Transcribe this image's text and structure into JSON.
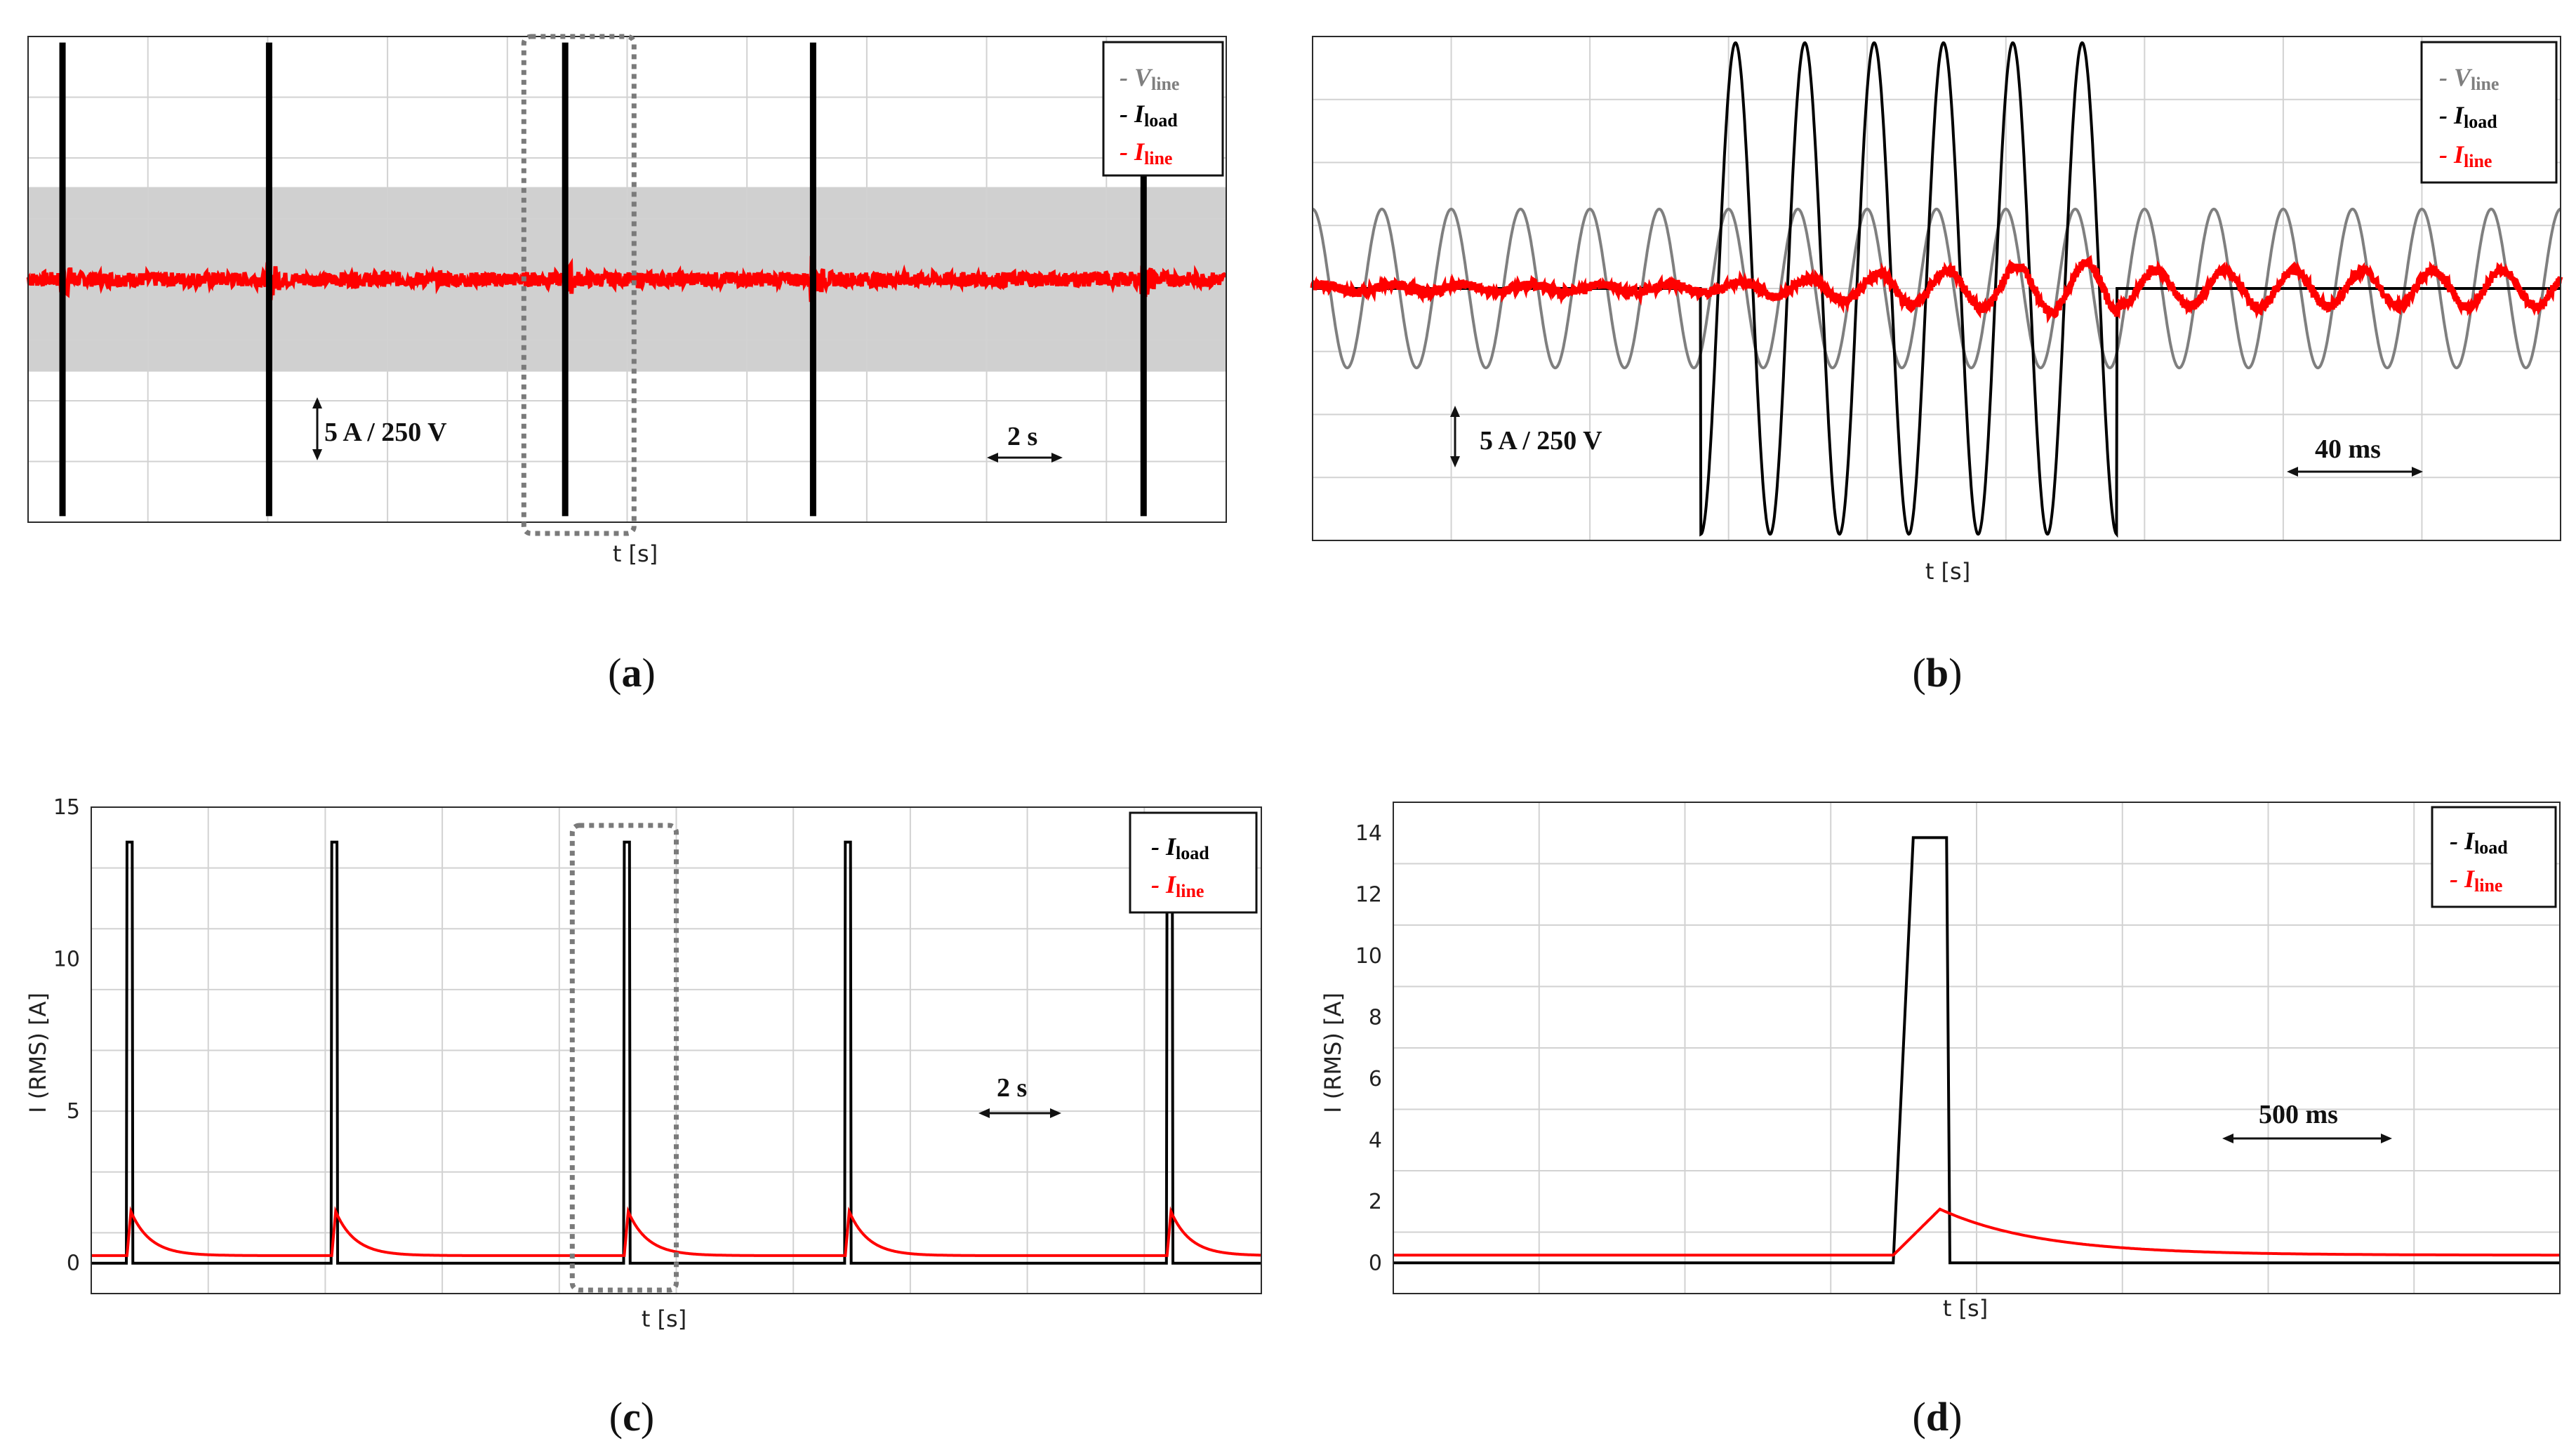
{
  "colors": {
    "v_line": "#7f7f7f",
    "i_load": "#000000",
    "i_line": "#ff0000",
    "band": "#d0d0d0"
  },
  "chart_data": [
    {
      "panel": "a",
      "caption_letter": "a",
      "type": "line",
      "xlabel": "t [s]",
      "ylabel": "",
      "x_units": "s",
      "xlim": [
        0,
        17.4
      ],
      "ylim": [
        -20,
        20
      ],
      "grid": true,
      "scale_y": "5 A / 250 V",
      "scale_x": "2 s",
      "series": [
        {
          "name": "V_line",
          "legend_main": "V",
          "legend_sub": "line",
          "style": "band",
          "amplitude": 7.6
        },
        {
          "name": "I_load",
          "legend_main": "I",
          "legend_sub": "load",
          "style": "spikes",
          "events": [
            0.5,
            3.5,
            7.8,
            11.4,
            16.2
          ],
          "amplitude": 19.5
        },
        {
          "name": "I_line",
          "legend_main": "I",
          "legend_sub": "line",
          "style": "noise",
          "amplitude": 0.6,
          "burst_amplitude": 2.0
        }
      ],
      "legend_position": "top-right",
      "highlight": {
        "x_from": 7.2,
        "x_to": 8.8
      }
    },
    {
      "panel": "b",
      "caption_letter": "b",
      "type": "line",
      "xlabel": "t [s]",
      "ylabel": "",
      "x_units": "ms",
      "xlim": [
        0,
        360
      ],
      "ylim": [
        -20,
        20
      ],
      "grid": true,
      "scale_y": "5 A / 250 V",
      "scale_x": "40 ms",
      "series": [
        {
          "name": "V_line",
          "legend_main": "V",
          "legend_sub": "line",
          "frequency_hz": 50,
          "amplitude": 6.3
        },
        {
          "name": "I_load",
          "legend_main": "I",
          "legend_sub": "load",
          "frequency_hz": 50,
          "on_from": 112,
          "on_to": 232,
          "amplitude": 19.5
        },
        {
          "name": "I_line",
          "legend_main": "I",
          "legend_sub": "line",
          "frequency_hz": 50,
          "amplitude_min": 0.3,
          "amplitude_max": 2.2,
          "ramp_from": 112,
          "ramp_to": 232
        }
      ],
      "legend_position": "top-right"
    },
    {
      "panel": "c",
      "caption_letter": "c",
      "type": "line",
      "xlabel": "t [s]",
      "ylabel": "I (RMS) [A]",
      "x_units": "s",
      "xlim": [
        0,
        18
      ],
      "ylim": [
        -1,
        15
      ],
      "y_ticks": [
        0,
        5,
        10,
        15
      ],
      "grid": true,
      "scale_x": "2 s",
      "series": [
        {
          "name": "I_load",
          "legend_main": "I",
          "legend_sub": "load",
          "baseline": 0,
          "peak": 13.85,
          "events": [
            0.55,
            3.7,
            8.2,
            11.6,
            16.55
          ],
          "pulse_width": 0.08
        },
        {
          "name": "I_line",
          "legend_main": "I",
          "legend_sub": "line",
          "baseline": 0.25,
          "peak": 1.7,
          "events": [
            0.55,
            3.7,
            8.2,
            11.6,
            16.55
          ],
          "decay": 0.3
        }
      ],
      "legend_position": "top-right",
      "highlight": {
        "x_from": 7.4,
        "x_to": 9.0
      }
    },
    {
      "panel": "d",
      "caption_letter": "d",
      "type": "line",
      "xlabel": "t [s]",
      "ylabel": "I (RMS) [A]",
      "x_units": "ms",
      "xlim": [
        0,
        3500
      ],
      "ylim": [
        -1,
        15
      ],
      "y_ticks": [
        0,
        2,
        4,
        6,
        8,
        10,
        12,
        14
      ],
      "grid": true,
      "scale_x": "500 ms",
      "series": [
        {
          "name": "I_load",
          "legend_main": "I",
          "legend_sub": "load",
          "baseline": 0,
          "peak": 13.85,
          "rise_from": 1500,
          "top_from": 1560,
          "top_to": 1660,
          "fall_to": 1670
        },
        {
          "name": "I_line",
          "legend_main": "I",
          "legend_sub": "line",
          "baseline": 0.25,
          "peak": 1.75,
          "rise_from": 1500,
          "peak_at": 1640,
          "decay": 300
        }
      ],
      "legend_position": "top-right"
    }
  ]
}
